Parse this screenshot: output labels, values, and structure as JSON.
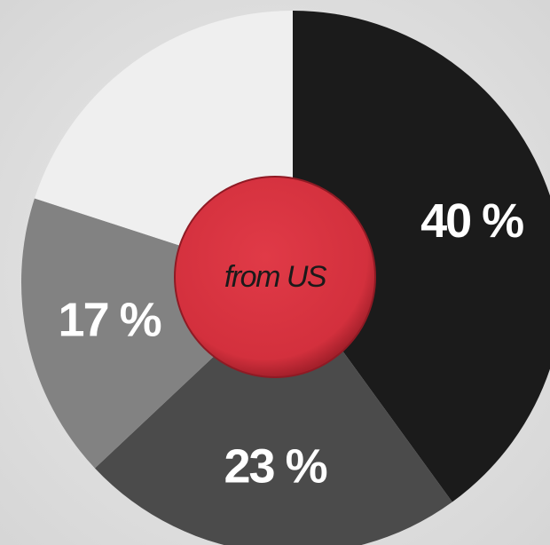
{
  "chart_data": {
    "type": "donut",
    "center_label": "from US",
    "values": [
      40,
      23,
      17,
      20
    ],
    "value_labels": [
      "40 %",
      "23 %",
      "17 %",
      null
    ],
    "colors": [
      "#1b1b1b",
      "#4b4b4b",
      "#828282",
      "#efefef"
    ]
  }
}
